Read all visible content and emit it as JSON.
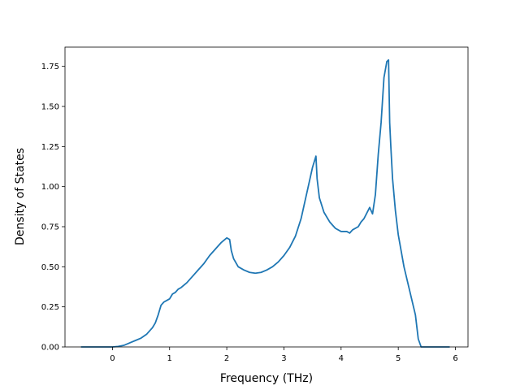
{
  "chart_data": {
    "type": "line",
    "title": "",
    "xlabel": "Frequency (THz)",
    "ylabel": "Density of States",
    "xlim": [
      -0.83,
      6.22
    ],
    "ylim": [
      0.0,
      1.87
    ],
    "grid": false,
    "legend": "none",
    "line_color": "#1f77b4",
    "xticks": [
      0,
      1,
      2,
      3,
      4,
      5,
      6
    ],
    "xtick_labels": [
      "0",
      "1",
      "2",
      "3",
      "4",
      "5",
      "6"
    ],
    "yticks": [
      0.0,
      0.25,
      0.5,
      0.75,
      1.0,
      1.25,
      1.5,
      1.75
    ],
    "ytick_labels": [
      "0.00",
      "0.25",
      "0.50",
      "0.75",
      "1.00",
      "1.25",
      "1.50",
      "1.75"
    ],
    "series": [
      {
        "x": [
          -0.55,
          -0.3,
          0.0,
          0.1,
          0.2,
          0.3,
          0.4,
          0.5,
          0.6,
          0.7,
          0.75,
          0.8,
          0.85,
          0.9,
          0.95,
          1.0,
          1.05,
          1.1,
          1.15,
          1.2,
          1.3,
          1.4,
          1.5,
          1.6,
          1.7,
          1.8,
          1.9,
          2.0,
          2.05,
          2.08,
          2.12,
          2.2,
          2.3,
          2.4,
          2.5,
          2.6,
          2.7,
          2.8,
          2.9,
          3.0,
          3.1,
          3.2,
          3.3,
          3.4,
          3.5,
          3.56,
          3.58,
          3.62,
          3.7,
          3.8,
          3.9,
          4.0,
          4.1,
          4.15,
          4.2,
          4.3,
          4.35,
          4.4,
          4.5,
          4.55,
          4.6,
          4.65,
          4.7,
          4.75,
          4.8,
          4.83,
          4.85,
          4.87,
          4.9,
          4.95,
          5.0,
          5.1,
          5.2,
          5.3,
          5.35,
          5.4,
          5.6,
          5.9
        ],
        "y": [
          0.0,
          0.0,
          0.0,
          0.003,
          0.01,
          0.025,
          0.04,
          0.055,
          0.08,
          0.12,
          0.15,
          0.2,
          0.26,
          0.28,
          0.29,
          0.3,
          0.33,
          0.34,
          0.36,
          0.37,
          0.4,
          0.44,
          0.48,
          0.52,
          0.57,
          0.61,
          0.65,
          0.68,
          0.67,
          0.6,
          0.55,
          0.5,
          0.48,
          0.465,
          0.46,
          0.465,
          0.48,
          0.5,
          0.53,
          0.57,
          0.62,
          0.69,
          0.8,
          0.96,
          1.12,
          1.19,
          1.05,
          0.93,
          0.84,
          0.78,
          0.74,
          0.72,
          0.72,
          0.71,
          0.73,
          0.75,
          0.78,
          0.8,
          0.87,
          0.83,
          0.95,
          1.2,
          1.4,
          1.68,
          1.78,
          1.79,
          1.4,
          1.25,
          1.05,
          0.85,
          0.7,
          0.5,
          0.35,
          0.2,
          0.05,
          0.0,
          0.0,
          0.0
        ]
      }
    ]
  }
}
